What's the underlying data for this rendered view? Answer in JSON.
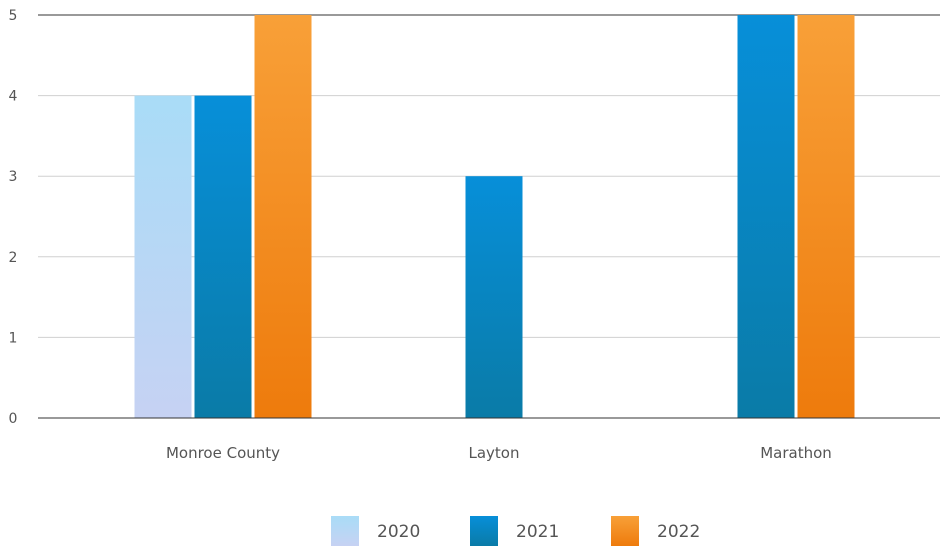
{
  "chart_data": {
    "type": "bar",
    "categories": [
      "Monroe County",
      "Layton",
      "Marathon"
    ],
    "series": [
      {
        "name": "2020",
        "values": [
          4,
          null,
          null
        ]
      },
      {
        "name": "2021",
        "values": [
          4,
          3,
          5
        ]
      },
      {
        "name": "2022",
        "values": [
          5,
          null,
          5
        ]
      }
    ],
    "ylim": [
      0,
      5
    ],
    "yticks": [
      "0",
      "1",
      "2",
      "3",
      "4",
      "5"
    ],
    "grid": true,
    "legend_placement": "bottom-center",
    "colors": {
      "2020": [
        "#a9dcf7",
        "#c6d2f3"
      ],
      "2021": [
        "#078fd9",
        "#0a7ba7"
      ],
      "2022": [
        "#f8a038",
        "#ee7b0c"
      ],
      "axis": "#333333",
      "grid": "#d0d0d0",
      "text": "#555555"
    }
  }
}
